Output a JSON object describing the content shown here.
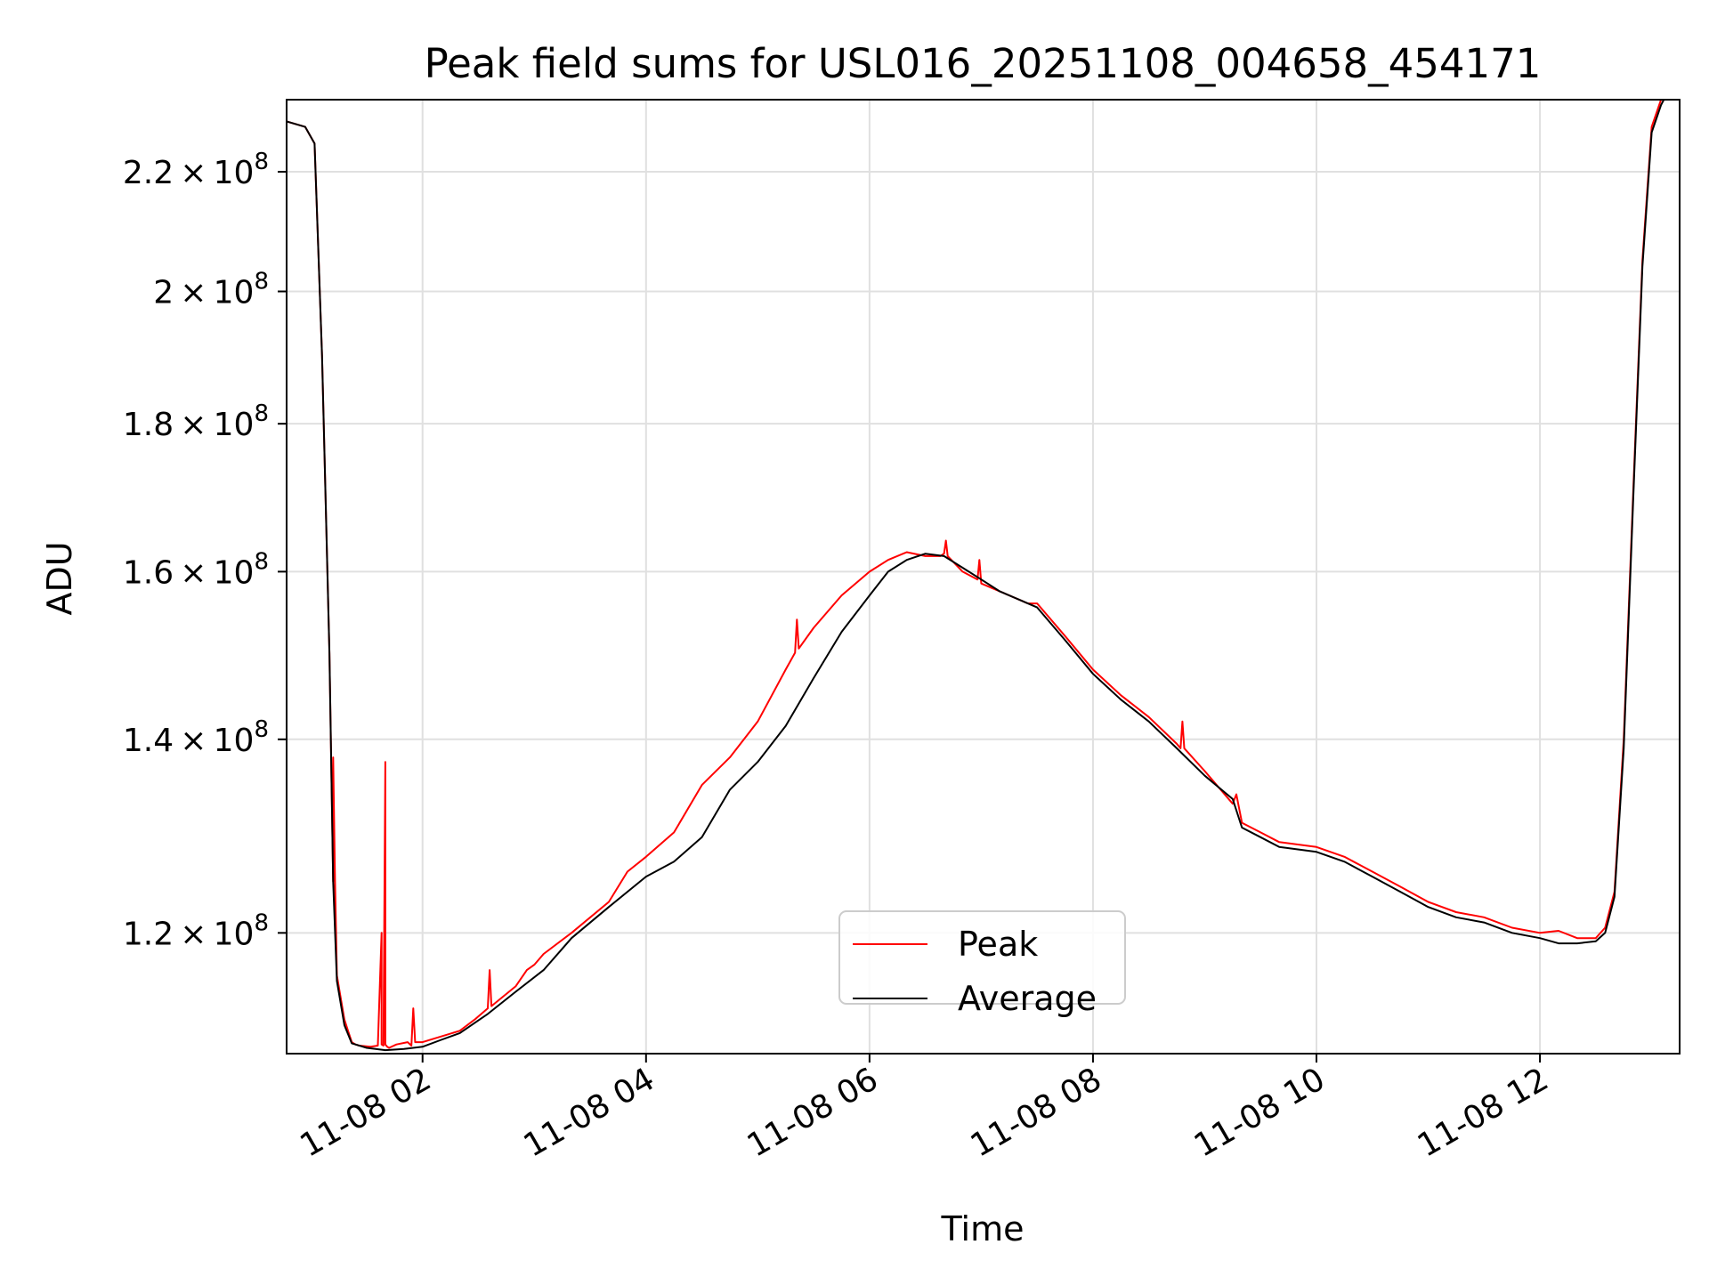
{
  "chart_data": {
    "type": "line",
    "title": "Peak field sums for USL016_20251108_004658_454171",
    "xlabel": "Time",
    "ylabel": "ADU",
    "x_axis_kind": "datetime",
    "xlim": [
      "2025-11-08 00:47",
      "2025-11-08 13:15"
    ],
    "ylim": [
      109000000,
      233000000
    ],
    "yscale": "log",
    "grid": true,
    "legend_position": "lower-center",
    "x_ticks": [
      {
        "value": "2025-11-08 02:00",
        "label": "11-08 02"
      },
      {
        "value": "2025-11-08 04:00",
        "label": "11-08 04"
      },
      {
        "value": "2025-11-08 06:00",
        "label": "11-08 06"
      },
      {
        "value": "2025-11-08 08:00",
        "label": "11-08 08"
      },
      {
        "value": "2025-11-08 10:00",
        "label": "11-08 10"
      },
      {
        "value": "2025-11-08 12:00",
        "label": "11-08 12"
      }
    ],
    "y_ticks": [
      {
        "value": 120000000,
        "mantissa": "1.2",
        "base": "10",
        "exp": "8"
      },
      {
        "value": 140000000,
        "mantissa": "1.4",
        "base": "10",
        "exp": "8"
      },
      {
        "value": 160000000,
        "mantissa": "1.6",
        "base": "10",
        "exp": "8"
      },
      {
        "value": 180000000,
        "mantissa": "1.8",
        "base": "10",
        "exp": "8"
      },
      {
        "value": 200000000,
        "mantissa": "2",
        "base": "10",
        "exp": "8"
      },
      {
        "value": 220000000,
        "mantissa": "2.2",
        "base": "10",
        "exp": "8"
      }
    ],
    "series": [
      {
        "name": "Peak",
        "color": "#ff0000",
        "x": [
          "2025-11-08 00:47",
          "2025-11-08 00:57",
          "2025-11-08 01:02",
          "2025-11-08 01:06",
          "2025-11-08 01:10",
          "2025-11-08 01:12",
          "2025-11-08 01:12",
          "2025-11-08 01:13",
          "2025-11-08 01:14",
          "2025-11-08 01:18",
          "2025-11-08 01:20",
          "2025-11-08 01:21",
          "2025-11-08 01:22",
          "2025-11-08 01:24",
          "2025-11-08 01:26",
          "2025-11-08 01:32",
          "2025-11-08 01:36",
          "2025-11-08 01:38",
          "2025-11-08 01:38",
          "2025-11-08 01:39",
          "2025-11-08 01:40",
          "2025-11-08 01:40",
          "2025-11-08 01:41",
          "2025-11-08 01:42",
          "2025-11-08 01:46",
          "2025-11-08 01:52",
          "2025-11-08 01:54",
          "2025-11-08 01:55",
          "2025-11-08 01:56",
          "2025-11-08 02:00",
          "2025-11-08 02:10",
          "2025-11-08 02:20",
          "2025-11-08 02:28",
          "2025-11-08 02:35",
          "2025-11-08 02:36",
          "2025-11-08 02:37",
          "2025-11-08 02:50",
          "2025-11-08 02:56",
          "2025-11-08 03:00",
          "2025-11-08 03:05",
          "2025-11-08 03:20",
          "2025-11-08 03:40",
          "2025-11-08 03:50",
          "2025-11-08 04:00",
          "2025-11-08 04:15",
          "2025-11-08 04:30",
          "2025-11-08 04:45",
          "2025-11-08 05:00",
          "2025-11-08 05:15",
          "2025-11-08 05:20",
          "2025-11-08 05:21",
          "2025-11-08 05:22",
          "2025-11-08 05:30",
          "2025-11-08 05:45",
          "2025-11-08 06:00",
          "2025-11-08 06:10",
          "2025-11-08 06:20",
          "2025-11-08 06:30",
          "2025-11-08 06:38",
          "2025-11-08 06:40",
          "2025-11-08 06:41",
          "2025-11-08 06:42",
          "2025-11-08 06:50",
          "2025-11-08 06:58",
          "2025-11-08 06:59",
          "2025-11-08 07:00",
          "2025-11-08 07:10",
          "2025-11-08 07:20",
          "2025-11-08 07:25",
          "2025-11-08 07:30",
          "2025-11-08 07:45",
          "2025-11-08 08:00",
          "2025-11-08 08:15",
          "2025-11-08 08:30",
          "2025-11-08 08:45",
          "2025-11-08 08:47",
          "2025-11-08 08:48",
          "2025-11-08 08:49",
          "2025-11-08 09:00",
          "2025-11-08 09:15",
          "2025-11-08 09:17",
          "2025-11-08 09:20",
          "2025-11-08 09:30",
          "2025-11-08 09:40",
          "2025-11-08 10:00",
          "2025-11-08 10:15",
          "2025-11-08 10:30",
          "2025-11-08 10:45",
          "2025-11-08 11:00",
          "2025-11-08 11:15",
          "2025-11-08 11:30",
          "2025-11-08 11:45",
          "2025-11-08 12:00",
          "2025-11-08 12:10",
          "2025-11-08 12:20",
          "2025-11-08 12:30",
          "2025-11-08 12:35",
          "2025-11-08 12:40",
          "2025-11-08 12:45",
          "2025-11-08 12:50",
          "2025-11-08 12:55",
          "2025-11-08 13:00",
          "2025-11-08 13:05",
          "2025-11-08 13:08"
        ],
        "y": [
          229000000,
          228000000,
          225000000,
          190000000,
          150000000,
          125000000,
          138000000,
          125000000,
          116000000,
          112000000,
          111000000,
          110500000,
          110000000,
          109800000,
          109700000,
          109600000,
          109700000,
          120000000,
          109800000,
          109700000,
          137500000,
          109800000,
          109600000,
          109500000,
          109800000,
          110000000,
          109700000,
          113000000,
          110000000,
          110000000,
          110500000,
          111000000,
          112000000,
          113000000,
          116500000,
          113200000,
          115000000,
          116500000,
          117000000,
          118000000,
          120000000,
          123000000,
          126000000,
          127500000,
          130000000,
          135000000,
          138000000,
          142000000,
          148000000,
          150000000,
          154000000,
          150500000,
          153000000,
          157000000,
          160000000,
          161500000,
          162500000,
          162000000,
          162000000,
          162300000,
          164000000,
          162000000,
          160000000,
          159000000,
          161500000,
          158500000,
          157500000,
          156500000,
          156000000,
          156000000,
          152000000,
          148000000,
          145000000,
          142500000,
          139500000,
          139000000,
          142000000,
          139000000,
          136500000,
          133000000,
          134000000,
          131000000,
          130000000,
          129000000,
          128500000,
          127500000,
          126000000,
          124500000,
          123000000,
          122000000,
          121500000,
          120500000,
          120000000,
          120200000,
          119500000,
          119500000,
          120500000,
          124000000,
          140000000,
          170000000,
          205000000,
          228000000,
          233000000,
          235000000
        ]
      },
      {
        "name": "Average",
        "color": "#000000",
        "x": [
          "2025-11-08 00:47",
          "2025-11-08 00:57",
          "2025-11-08 01:02",
          "2025-11-08 01:06",
          "2025-11-08 01:10",
          "2025-11-08 01:12",
          "2025-11-08 01:14",
          "2025-11-08 01:18",
          "2025-11-08 01:22",
          "2025-11-08 01:30",
          "2025-11-08 01:40",
          "2025-11-08 01:50",
          "2025-11-08 02:00",
          "2025-11-08 02:10",
          "2025-11-08 02:20",
          "2025-11-08 02:35",
          "2025-11-08 02:50",
          "2025-11-08 03:05",
          "2025-11-08 03:20",
          "2025-11-08 03:40",
          "2025-11-08 04:00",
          "2025-11-08 04:15",
          "2025-11-08 04:30",
          "2025-11-08 04:45",
          "2025-11-08 05:00",
          "2025-11-08 05:15",
          "2025-11-08 05:30",
          "2025-11-08 05:45",
          "2025-11-08 06:00",
          "2025-11-08 06:10",
          "2025-11-08 06:20",
          "2025-11-08 06:30",
          "2025-11-08 06:40",
          "2025-11-08 06:50",
          "2025-11-08 07:00",
          "2025-11-08 07:10",
          "2025-11-08 07:20",
          "2025-11-08 07:25",
          "2025-11-08 07:30",
          "2025-11-08 07:45",
          "2025-11-08 08:00",
          "2025-11-08 08:15",
          "2025-11-08 08:30",
          "2025-11-08 08:45",
          "2025-11-08 09:00",
          "2025-11-08 09:15",
          "2025-11-08 09:20",
          "2025-11-08 09:30",
          "2025-11-08 09:40",
          "2025-11-08 10:00",
          "2025-11-08 10:15",
          "2025-11-08 10:30",
          "2025-11-08 10:45",
          "2025-11-08 11:00",
          "2025-11-08 11:15",
          "2025-11-08 11:30",
          "2025-11-08 11:45",
          "2025-11-08 12:00",
          "2025-11-08 12:10",
          "2025-11-08 12:20",
          "2025-11-08 12:30",
          "2025-11-08 12:35",
          "2025-11-08 12:40",
          "2025-11-08 12:45",
          "2025-11-08 12:50",
          "2025-11-08 12:55",
          "2025-11-08 13:00",
          "2025-11-08 13:05",
          "2025-11-08 13:08"
        ],
        "y": [
          229000000,
          228000000,
          225000000,
          190000000,
          150000000,
          125000000,
          115500000,
          111500000,
          109900000,
          109500000,
          109300000,
          109400000,
          109600000,
          110200000,
          110800000,
          112500000,
          114500000,
          116500000,
          119500000,
          122500000,
          125500000,
          127000000,
          129500000,
          134500000,
          137500000,
          141500000,
          147000000,
          152500000,
          157000000,
          160000000,
          161500000,
          162300000,
          162000000,
          160500000,
          159000000,
          157500000,
          156500000,
          156000000,
          155500000,
          151500000,
          147500000,
          144500000,
          142000000,
          139000000,
          136000000,
          133500000,
          130500000,
          129500000,
          128500000,
          128000000,
          127000000,
          125500000,
          124000000,
          122500000,
          121500000,
          121000000,
          120000000,
          119500000,
          119000000,
          119000000,
          119200000,
          120000000,
          123500000,
          139000000,
          169000000,
          204000000,
          227000000,
          232000000,
          234000000
        ]
      }
    ]
  }
}
